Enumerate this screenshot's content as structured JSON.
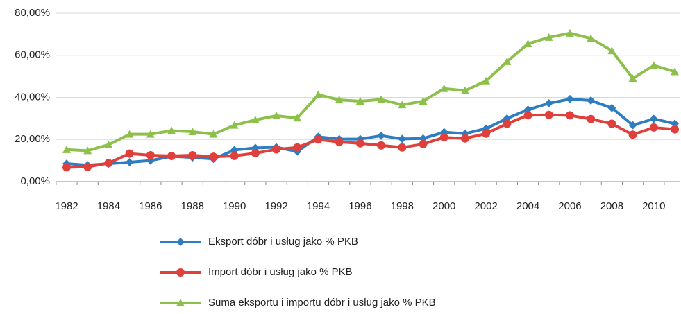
{
  "chart_data": {
    "type": "line",
    "categories": [
      "1982",
      null,
      "1984",
      null,
      "1986",
      null,
      "1988",
      null,
      "1990",
      null,
      "1992",
      null,
      "1994",
      null,
      "1996",
      null,
      "1998",
      null,
      "2000",
      null,
      "2002",
      null,
      "2004",
      null,
      "2006",
      null,
      "2008",
      null,
      "2010",
      null
    ],
    "series": [
      {
        "name": "Eksport dóbr i usług jako % PKB",
        "color": "#2e7dc1",
        "marker": "diamond",
        "values": [
          8.5,
          7.8,
          8.5,
          9.2,
          10,
          12,
          11.5,
          10.8,
          15,
          16,
          16.3,
          14.3,
          21.3,
          20.2,
          20.2,
          21.8,
          20.3,
          20.5,
          23.5,
          22.8,
          25.2,
          30,
          34.2,
          37.2,
          39.2,
          38.5,
          35,
          26.8,
          29.8,
          27.5
        ]
      },
      {
        "name": "Import dóbr i usług jako % PKB",
        "color": "#e0403c",
        "marker": "circle",
        "values": [
          6.8,
          7,
          8.8,
          13.3,
          12.5,
          12.2,
          12.5,
          11.8,
          12.2,
          13.5,
          15.3,
          16.2,
          20,
          18.8,
          18.2,
          17.2,
          16.2,
          17.8,
          21,
          20.5,
          22.8,
          27.5,
          31.5,
          31.7,
          31.5,
          29.7,
          27.5,
          22.3,
          25.7,
          24.8
        ]
      },
      {
        "name": "Suma eksportu i importu dóbr i usług jako % PKB",
        "color": "#8cc04a",
        "marker": "triangle",
        "values": [
          15.2,
          14.7,
          17.5,
          22.5,
          22.5,
          24.2,
          23.7,
          22.5,
          26.8,
          29.3,
          31.3,
          30.2,
          41.3,
          38.8,
          38.2,
          39,
          36.5,
          38.2,
          44.2,
          43.2,
          47.8,
          57,
          65.5,
          68.5,
          70.5,
          68,
          62.2,
          49,
          55.2,
          52.2
        ]
      }
    ],
    "ylim": [
      0,
      80
    ],
    "yticks": [
      {
        "value": 0,
        "label": "0,00%"
      },
      {
        "value": 20,
        "label": "20,00%"
      },
      {
        "value": 40,
        "label": "40,00%"
      },
      {
        "value": 60,
        "label": "60,00%"
      },
      {
        "value": 80,
        "label": "80,00%"
      }
    ],
    "grid": true
  }
}
